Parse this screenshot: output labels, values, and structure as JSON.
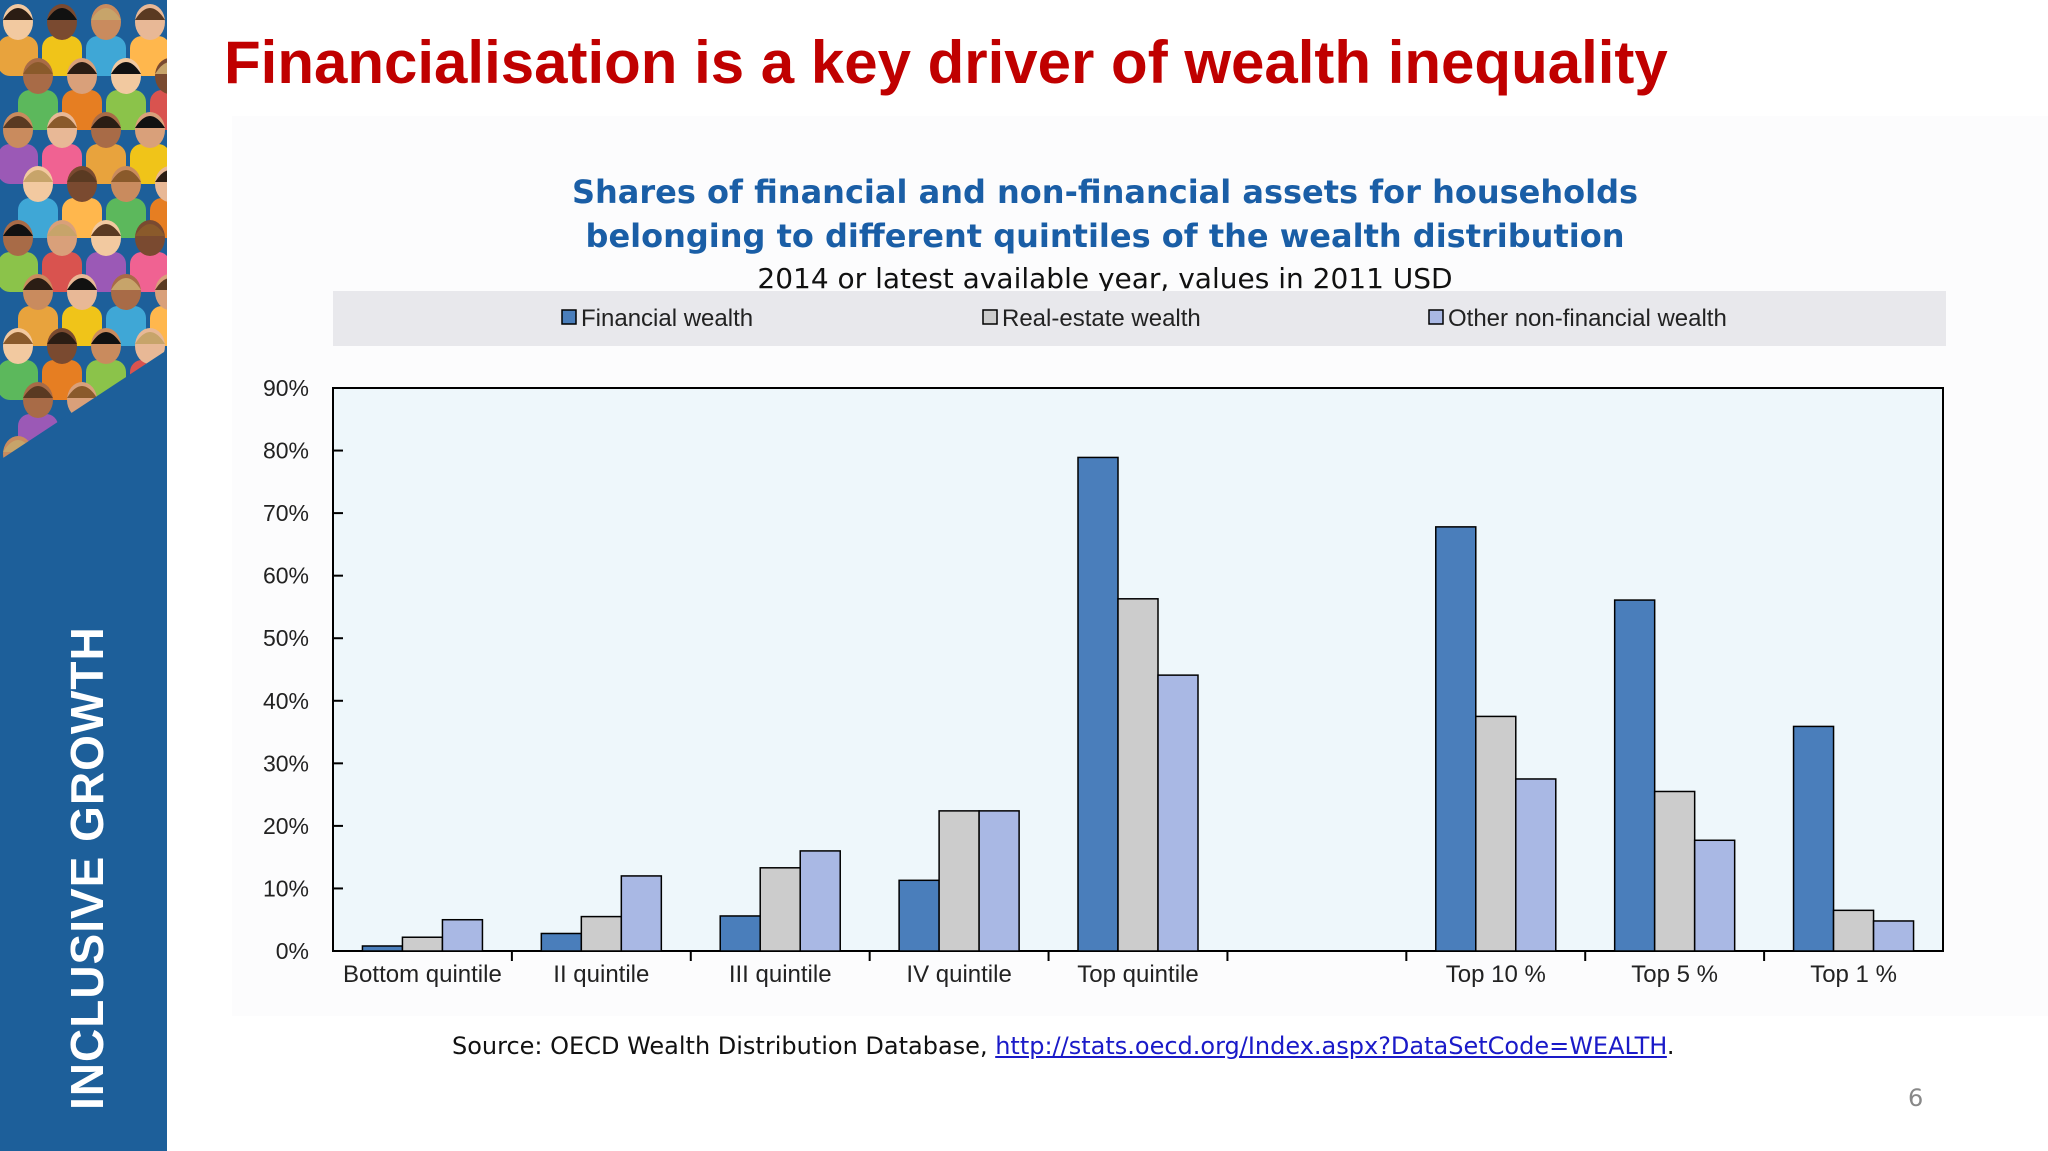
{
  "sidebar": {
    "label": "INCLUSIVE GROWTH"
  },
  "slide": {
    "title": "Financialisation is a key driver of wealth inequality",
    "source_prefix": "Source: OECD Wealth Distribution Database, ",
    "source_link": "http://stats.oecd.org/Index.aspx?DataSetCode=WEALTH",
    "source_suffix": ".",
    "page_number": "6"
  },
  "colors": {
    "title": "#c00000",
    "sidebar": "#1d5f9a",
    "chart_title": "#1a5ea6",
    "plot_background": "#eef7fb",
    "legend_background": "#e8e8ec"
  },
  "chart_data": {
    "type": "bar",
    "title_line1": "Shares of financial and non-financial assets for households",
    "title_line2": "belonging to different quintiles of the wealth distribution",
    "subtitle": "2014 or latest available year, values in 2011 USD",
    "categories": [
      "Bottom quintile",
      "II quintile",
      "III quintile",
      "IV quintile",
      "Top quintile",
      "",
      "Top 10 %",
      "Top 5 %",
      "Top 1 %"
    ],
    "series": [
      {
        "name": "Financial wealth",
        "color": "#4a7ebb",
        "values": [
          0.8,
          2.8,
          5.6,
          11.3,
          78.9,
          null,
          67.8,
          56.1,
          35.9
        ]
      },
      {
        "name": "Real-estate wealth",
        "color": "#cccccc",
        "values": [
          2.2,
          5.5,
          13.3,
          22.4,
          56.3,
          null,
          37.5,
          25.5,
          6.5
        ]
      },
      {
        "name": "Other non-financial wealth",
        "color": "#a9b8e4",
        "values": [
          5.0,
          12.0,
          16.0,
          22.4,
          44.1,
          null,
          27.5,
          17.7,
          4.8
        ]
      }
    ],
    "yticks": [
      "0%",
      "10%",
      "20%",
      "30%",
      "40%",
      "50%",
      "60%",
      "70%",
      "80%",
      "90%"
    ],
    "ylim": [
      0,
      90
    ],
    "grid": false,
    "legend_position": "top"
  }
}
